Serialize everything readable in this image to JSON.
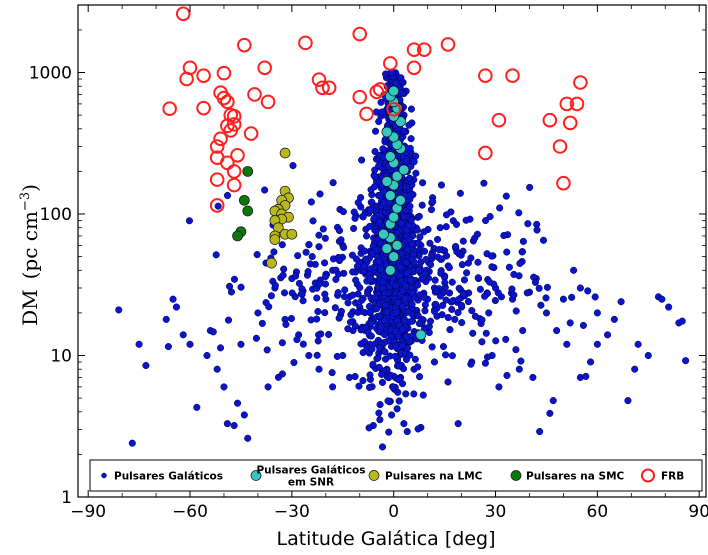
{
  "chart_data": {
    "type": "scatter",
    "xlabel": "Latitude Galática [deg]",
    "ylabel_main": "DM",
    "ylabel_unit": "(pc cm",
    "ylabel_exp": "−3",
    "ylabel_close": ")",
    "xlim": [
      -93,
      92
    ],
    "ylim": [
      1,
      3000
    ],
    "yscale": "log",
    "x_ticks": [
      -90,
      -60,
      -30,
      0,
      30,
      60,
      90
    ],
    "x_tick_labels": [
      "−90",
      "−60",
      "−30",
      "0",
      "30",
      "60",
      "90"
    ],
    "y_ticks": [
      1,
      10,
      100,
      1000
    ],
    "y_tick_labels": [
      "1",
      "10",
      "100",
      "1000"
    ],
    "legend_position": "bottom",
    "series": [
      {
        "name": "Pulsares Galáticos",
        "color": "#0a14c8",
        "marker": "dot",
        "generated": true,
        "points": [
          [
            -81,
            21
          ],
          [
            -77,
            2.4
          ],
          [
            -75,
            12
          ],
          [
            -73,
            8.5
          ],
          [
            -67,
            18
          ],
          [
            -65,
            25
          ],
          [
            -64,
            22
          ],
          [
            -58,
            4.3
          ],
          [
            -54,
            15
          ],
          [
            -52,
            8
          ],
          [
            -50,
            6
          ],
          [
            -49,
            3.3
          ],
          [
            -47,
            3.2
          ],
          [
            -46,
            4.6
          ],
          [
            -44,
            3.8
          ],
          [
            -43,
            2.6
          ],
          [
            -37,
            6
          ],
          [
            -28,
            14
          ],
          [
            -25,
            10
          ],
          [
            -22,
            8
          ],
          [
            -15,
            10
          ],
          [
            -9,
            10.5
          ],
          [
            -6,
            3.2
          ],
          [
            -4,
            4.5
          ],
          [
            -2,
            8
          ],
          [
            1,
            4.2
          ],
          [
            2,
            7
          ],
          [
            3,
            3.3
          ],
          [
            4,
            2.9
          ],
          [
            6,
            8
          ],
          [
            8,
            3.1
          ],
          [
            19,
            3.3
          ],
          [
            23,
            9
          ],
          [
            26,
            12.5
          ],
          [
            29,
            10
          ],
          [
            31,
            6
          ],
          [
            36,
            11
          ],
          [
            37,
            8
          ],
          [
            41,
            7
          ],
          [
            43,
            2.9
          ],
          [
            46,
            3.9
          ],
          [
            47,
            4.8
          ],
          [
            51,
            12
          ],
          [
            52,
            17
          ],
          [
            55,
            7
          ],
          [
            58,
            9
          ],
          [
            60,
            12
          ],
          [
            63,
            14
          ],
          [
            67,
            24
          ],
          [
            69,
            4.8
          ],
          [
            71,
            8
          ],
          [
            72,
            12
          ],
          [
            75,
            10
          ],
          [
            78,
            26
          ],
          [
            79,
            25
          ],
          [
            81,
            22
          ],
          [
            84,
            17
          ],
          [
            85,
            17.5
          ],
          [
            86,
            9.2
          ],
          [
            -40,
            20
          ],
          [
            -35,
            30
          ],
          [
            -30,
            35
          ],
          [
            -32,
            18
          ],
          [
            -20,
            25
          ],
          [
            -18,
            40
          ],
          [
            -12,
            15
          ],
          [
            -10,
            22
          ],
          [
            10,
            25
          ],
          [
            12,
            30
          ],
          [
            18,
            18
          ],
          [
            20,
            22
          ],
          [
            25,
            35
          ],
          [
            28,
            20
          ],
          [
            35,
            25
          ],
          [
            40,
            28
          ],
          [
            45,
            20
          ],
          [
            48,
            15
          ],
          [
            55,
            30
          ],
          [
            -55,
            10
          ],
          [
            -60,
            12
          ],
          [
            -62,
            14
          ],
          [
            -45,
            12
          ],
          [
            38,
            15
          ],
          [
            33,
            13
          ],
          [
            -27,
            27
          ],
          [
            -24,
            50
          ],
          [
            -15,
            60
          ],
          [
            -8,
            70
          ],
          [
            8,
            60
          ],
          [
            15,
            55
          ],
          [
            22,
            45
          ],
          [
            30,
            30
          ],
          [
            42,
            35
          ],
          [
            50,
            25
          ],
          [
            53,
            40
          ],
          [
            60,
            20
          ],
          [
            65,
            18
          ],
          [
            -5,
            28
          ],
          [
            5,
            35
          ],
          [
            -3,
            15
          ],
          [
            3,
            12
          ],
          [
            6,
            14
          ],
          [
            -7,
            12
          ],
          [
            12,
            9
          ],
          [
            -13,
            7
          ],
          [
            16,
            6.5
          ],
          [
            -18,
            6
          ]
        ]
      },
      {
        "name": "Pulsares Galáticos em SNR",
        "color": "#33c8c0",
        "marker": "circle",
        "points": [
          [
            -1,
            40
          ],
          [
            0,
            50
          ],
          [
            -2,
            57
          ],
          [
            1,
            60
          ],
          [
            -1,
            68
          ],
          [
            -3,
            72
          ],
          [
            -1,
            85
          ],
          [
            0,
            95
          ],
          [
            1,
            110
          ],
          [
            2,
            125
          ],
          [
            -1,
            135
          ],
          [
            0,
            160
          ],
          [
            -2,
            170
          ],
          [
            1,
            185
          ],
          [
            3,
            205
          ],
          [
            0,
            230
          ],
          [
            -1,
            255
          ],
          [
            2,
            290
          ],
          [
            1,
            310
          ],
          [
            0,
            350
          ],
          [
            -2,
            380
          ],
          [
            2,
            450
          ],
          [
            0,
            490
          ],
          [
            1,
            560
          ],
          [
            0,
            620
          ],
          [
            -1,
            680
          ],
          [
            0,
            740
          ],
          [
            8,
            14
          ]
        ]
      },
      {
        "name": "Pulsares na LMC",
        "color": "#b8b81e",
        "marker": "circle",
        "points": [
          [
            -32,
            270
          ],
          [
            -32,
            145
          ],
          [
            -31,
            130
          ],
          [
            -33,
            125
          ],
          [
            -32,
            115
          ],
          [
            -34,
            108
          ],
          [
            -35,
            105
          ],
          [
            -33,
            100
          ],
          [
            -31,
            95
          ],
          [
            -33,
            92
          ],
          [
            -35,
            90
          ],
          [
            -34,
            80
          ],
          [
            -32,
            72
          ],
          [
            -30,
            72
          ],
          [
            -35,
            70
          ],
          [
            -35,
            66
          ],
          [
            -36,
            45
          ]
        ]
      },
      {
        "name": "Pulsares na SMC",
        "color": "#0a780a",
        "marker": "circle",
        "points": [
          [
            -43,
            200
          ],
          [
            -44,
            125
          ],
          [
            -43,
            105
          ],
          [
            -45,
            75
          ],
          [
            -46,
            70
          ]
        ]
      },
      {
        "name": "FRB",
        "color": "#ff2020",
        "marker": "open-circle",
        "points": [
          [
            -62,
            2600
          ],
          [
            -60,
            1080
          ],
          [
            -61,
            900
          ],
          [
            -56,
            950
          ],
          [
            -50,
            990
          ],
          [
            -51,
            720
          ],
          [
            -50,
            660
          ],
          [
            -49,
            620
          ],
          [
            -48,
            500
          ],
          [
            -47,
            490
          ],
          [
            -47,
            430
          ],
          [
            -49,
            420
          ],
          [
            -48,
            390
          ],
          [
            -51,
            340
          ],
          [
            -52,
            300
          ],
          [
            -46,
            260
          ],
          [
            -52,
            250
          ],
          [
            -49,
            230
          ],
          [
            -47,
            200
          ],
          [
            -52,
            175
          ],
          [
            -47,
            160
          ],
          [
            -52,
            115
          ],
          [
            -56,
            560
          ],
          [
            -66,
            555
          ],
          [
            -44,
            1560
          ],
          [
            -42,
            370
          ],
          [
            -41,
            700
          ],
          [
            -38,
            1080
          ],
          [
            -37,
            620
          ],
          [
            -26,
            1620
          ],
          [
            -22,
            890
          ],
          [
            -21,
            780
          ],
          [
            -19,
            780
          ],
          [
            -10,
            1870
          ],
          [
            -10,
            670
          ],
          [
            -8,
            510
          ],
          [
            -5,
            730
          ],
          [
            -4,
            760
          ],
          [
            -1,
            1160
          ],
          [
            0,
            550
          ],
          [
            6,
            1080
          ],
          [
            6,
            1450
          ],
          [
            9,
            1450
          ],
          [
            16,
            1580
          ],
          [
            27,
            950
          ],
          [
            27,
            270
          ],
          [
            31,
            460
          ],
          [
            35,
            950
          ],
          [
            46,
            460
          ],
          [
            49,
            300
          ],
          [
            50,
            165
          ],
          [
            51,
            600
          ],
          [
            52,
            440
          ],
          [
            54,
            600
          ],
          [
            55,
            850
          ]
        ]
      }
    ]
  }
}
